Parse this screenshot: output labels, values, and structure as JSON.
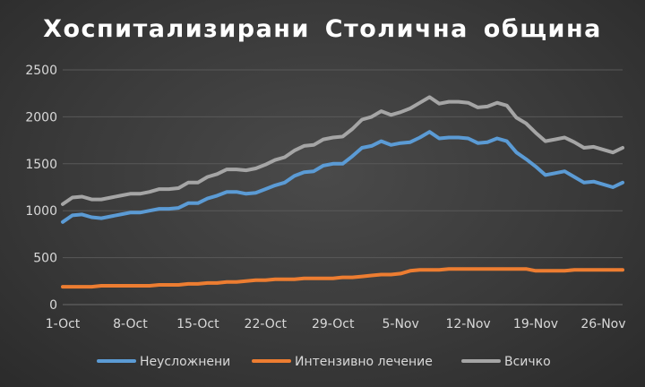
{
  "chart_data": {
    "type": "line",
    "title": "Хоспитализирани  Столична  община",
    "xlabel": "",
    "ylabel": "",
    "x_ticks": [
      "1-Oct",
      "8-Oct",
      "15-Oct",
      "22-Oct",
      "29-Oct",
      "5-Nov",
      "12-Nov",
      "19-Nov",
      "26-Nov"
    ],
    "y_ticks": [
      "0",
      "500",
      "1000",
      "1500",
      "2000",
      "2500"
    ],
    "ylim": [
      0,
      2500
    ],
    "grid": true,
    "legend_position": "bottom",
    "x_days": [
      0,
      1,
      2,
      3,
      4,
      5,
      6,
      7,
      8,
      9,
      10,
      11,
      12,
      13,
      14,
      15,
      16,
      17,
      18,
      19,
      20,
      21,
      22,
      23,
      24,
      25,
      26,
      27,
      28,
      29,
      30,
      31,
      32,
      33,
      34,
      35,
      36,
      37,
      38,
      39,
      40,
      41,
      42,
      43,
      44,
      45,
      46,
      47,
      48,
      49,
      50,
      51,
      52,
      53,
      54,
      55,
      57,
      58
    ],
    "series": [
      {
        "name": "Неусложнени",
        "color": "#5b9bd5",
        "values": [
          880,
          950,
          960,
          930,
          920,
          940,
          960,
          980,
          980,
          1000,
          1020,
          1020,
          1030,
          1080,
          1080,
          1130,
          1160,
          1200,
          1200,
          1180,
          1190,
          1230,
          1270,
          1300,
          1370,
          1410,
          1420,
          1480,
          1500,
          1500,
          1580,
          1670,
          1690,
          1740,
          1700,
          1720,
          1730,
          1780,
          1840,
          1770,
          1780,
          1780,
          1770,
          1720,
          1730,
          1770,
          1740,
          1620,
          1550,
          1470,
          1380,
          1400,
          1420,
          1360,
          1300,
          1310,
          1250,
          1300
        ]
      },
      {
        "name": "Интензивно лечение",
        "color": "#ed7d31",
        "values": [
          190,
          190,
          190,
          190,
          200,
          200,
          200,
          200,
          200,
          200,
          210,
          210,
          210,
          220,
          220,
          230,
          230,
          240,
          240,
          250,
          260,
          260,
          270,
          270,
          270,
          280,
          280,
          280,
          280,
          290,
          290,
          300,
          310,
          320,
          320,
          330,
          360,
          370,
          370,
          370,
          380,
          380,
          380,
          380,
          380,
          380,
          380,
          380,
          380,
          360,
          360,
          360,
          360,
          370,
          370,
          370,
          370,
          370
        ]
      },
      {
        "name": "Всичко",
        "color": "#a5a5a5",
        "values": [
          1070,
          1140,
          1150,
          1120,
          1120,
          1140,
          1160,
          1180,
          1180,
          1200,
          1230,
          1230,
          1240,
          1300,
          1300,
          1360,
          1390,
          1440,
          1440,
          1430,
          1450,
          1490,
          1540,
          1570,
          1640,
          1690,
          1700,
          1760,
          1780,
          1790,
          1870,
          1970,
          2000,
          2060,
          2020,
          2050,
          2090,
          2150,
          2210,
          2140,
          2160,
          2160,
          2150,
          2100,
          2110,
          2150,
          2120,
          1990,
          1930,
          1830,
          1740,
          1760,
          1780,
          1730,
          1670,
          1680,
          1620,
          1670
        ]
      }
    ]
  }
}
